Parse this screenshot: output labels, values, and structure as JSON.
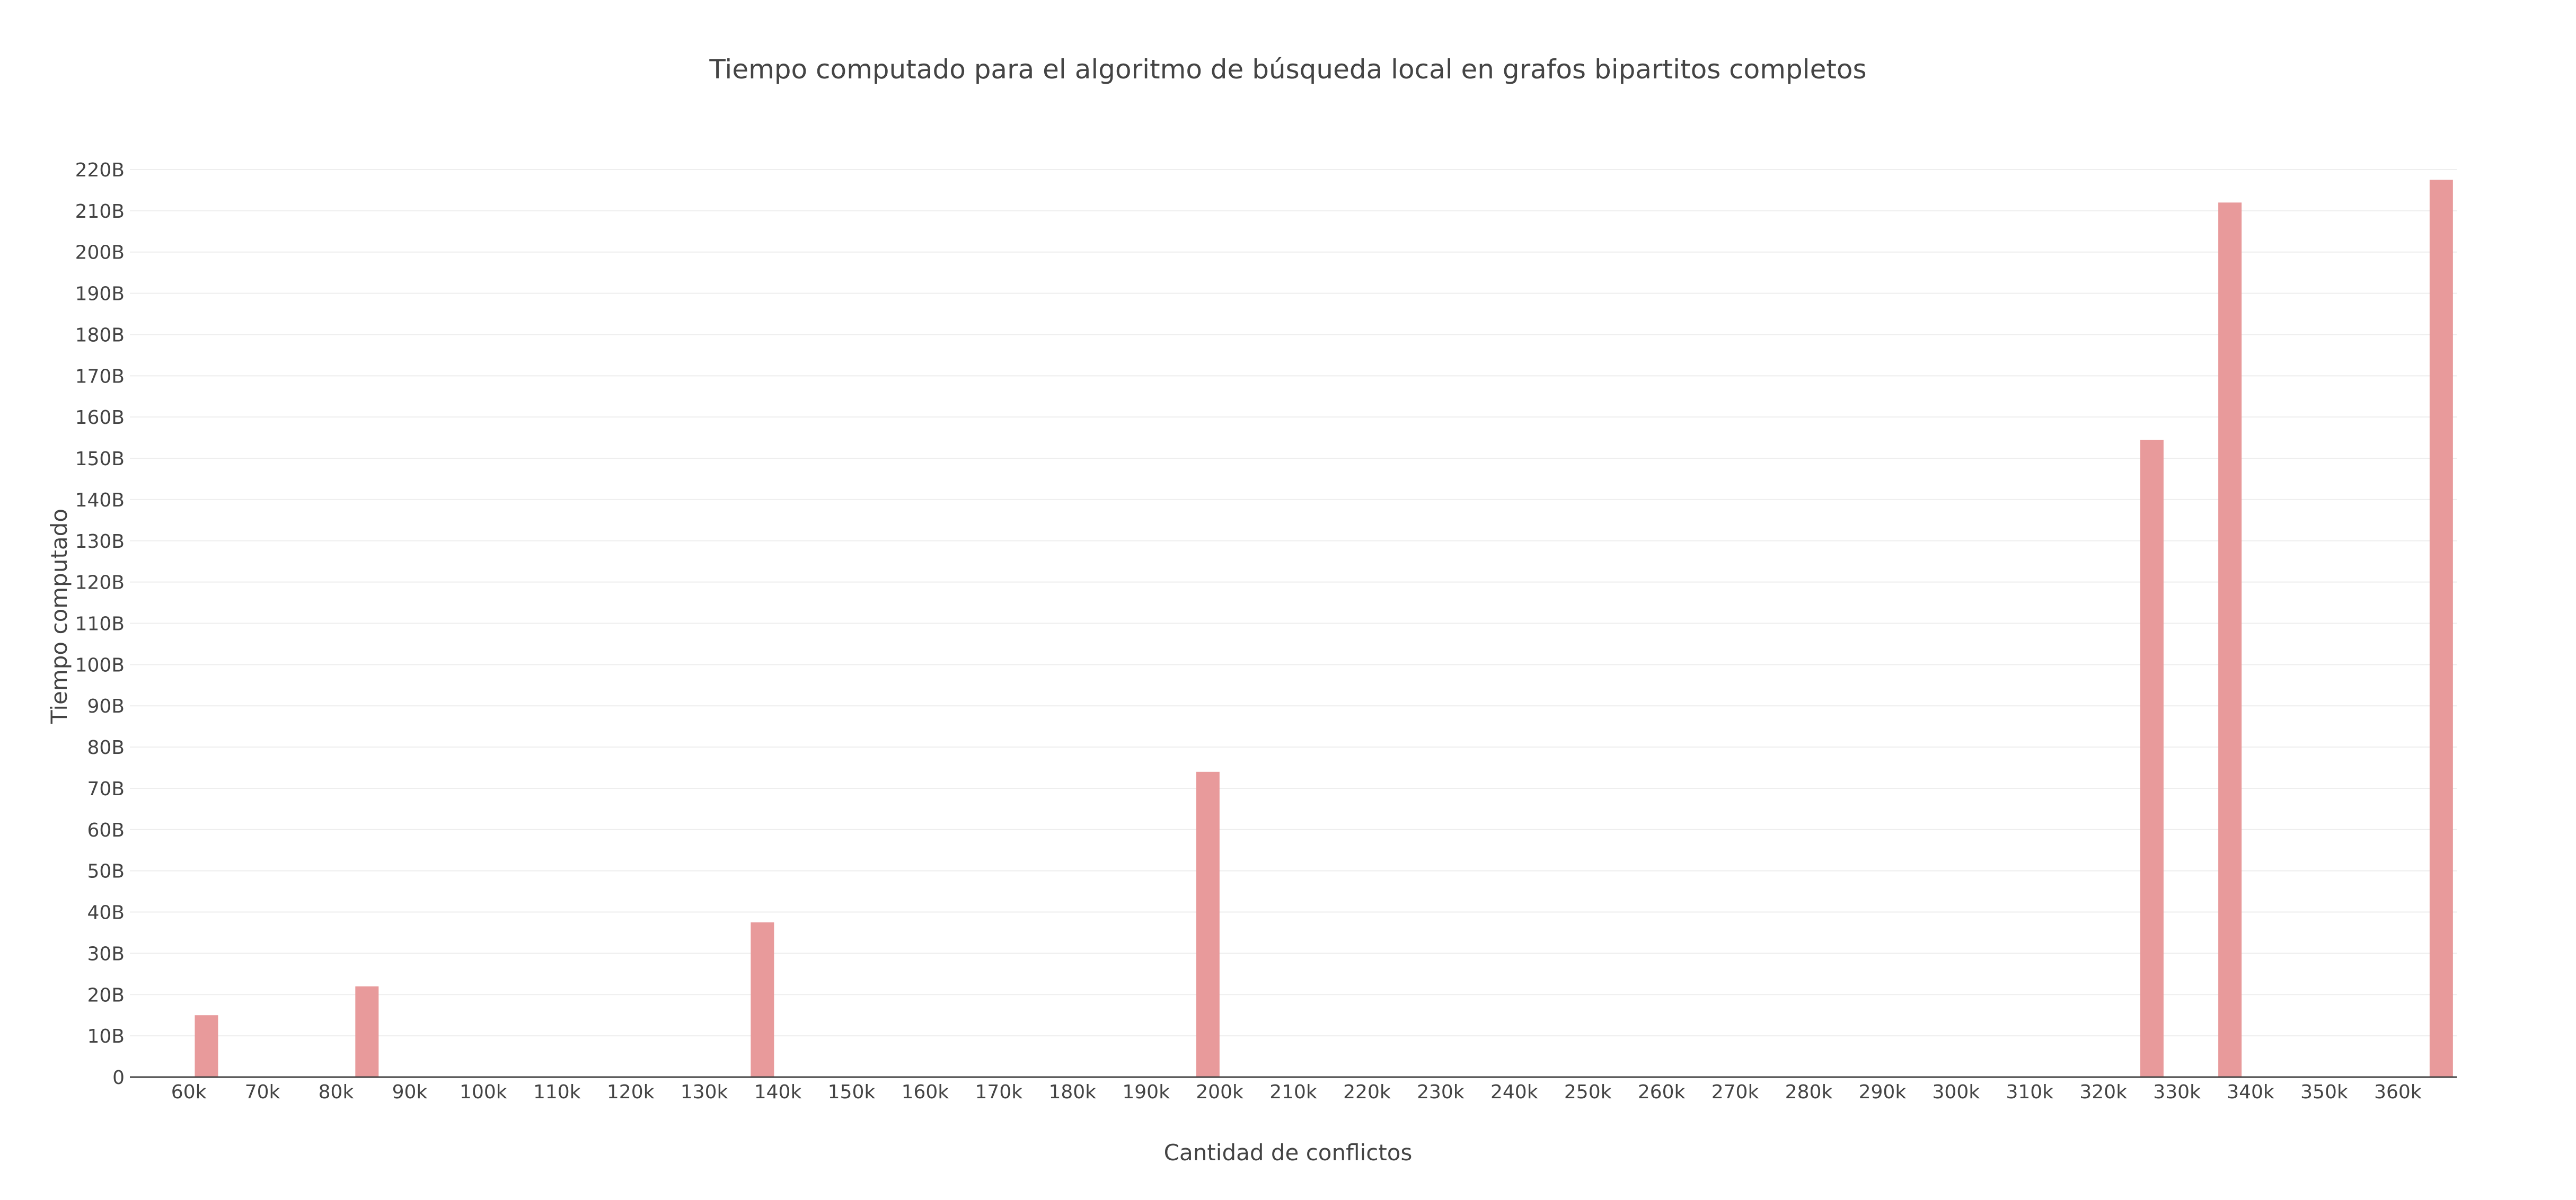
{
  "chart_data": {
    "type": "bar",
    "title": "Tiempo computado para el algoritmo de búsqueda local en grafos bipartitos completos",
    "xlabel": "Cantidad de conflictos",
    "ylabel": "Tiempo computado",
    "bar_color": "#e89a9b",
    "grid": true,
    "legend": "none",
    "xlim": [
      52000,
      368000
    ],
    "ylim": [
      0,
      220
    ],
    "x_tick_values": [
      60,
      70,
      80,
      90,
      100,
      110,
      120,
      130,
      140,
      150,
      160,
      170,
      180,
      190,
      200,
      210,
      220,
      230,
      240,
      250,
      260,
      270,
      280,
      290,
      300,
      310,
      320,
      330,
      340,
      350,
      360
    ],
    "x_tick_labels": [
      "60k",
      "70k",
      "80k",
      "90k",
      "100k",
      "110k",
      "120k",
      "130k",
      "140k",
      "150k",
      "160k",
      "170k",
      "180k",
      "190k",
      "200k",
      "210k",
      "220k",
      "230k",
      "240k",
      "250k",
      "260k",
      "270k",
      "280k",
      "290k",
      "300k",
      "310k",
      "320k",
      "330k",
      "340k",
      "350k",
      "360k"
    ],
    "y_tick_values": [
      0,
      10,
      20,
      30,
      40,
      50,
      60,
      70,
      80,
      90,
      100,
      110,
      120,
      130,
      140,
      150,
      160,
      170,
      180,
      190,
      200,
      210,
      220
    ],
    "y_tick_labels": [
      "0",
      "10B",
      "20B",
      "30B",
      "40B",
      "50B",
      "60B",
      "70B",
      "80B",
      "90B",
      "100B",
      "110B",
      "120B",
      "130B",
      "140B",
      "150B",
      "160B",
      "170B",
      "180B",
      "190B",
      "200B",
      "210B",
      "220B"
    ],
    "x_unit": "thousand conflicts",
    "y_unit": "billion",
    "x": [
      62.4,
      84.2,
      137.9,
      198.4,
      326.6,
      337.2,
      365.9
    ],
    "values": [
      15,
      22,
      37.5,
      74,
      154.5,
      212,
      217.5
    ]
  }
}
